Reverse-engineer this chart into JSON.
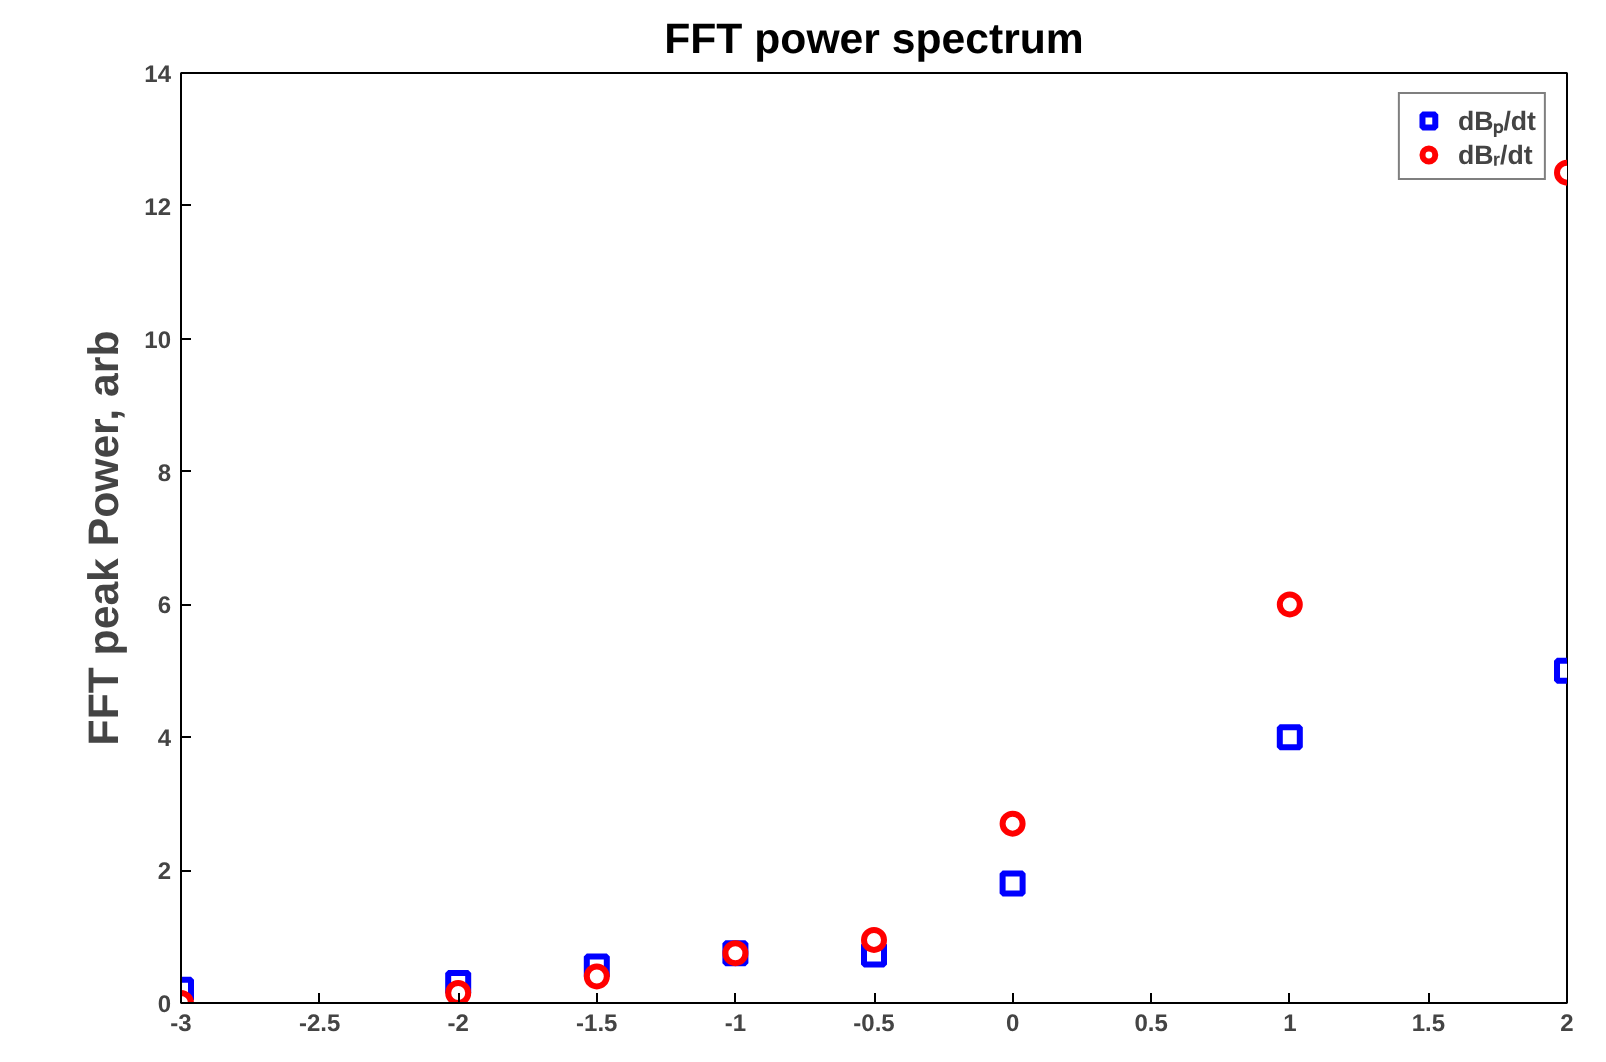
{
  "chart_data": {
    "type": "scatter",
    "title": "FFT power spectrum",
    "ylabel": "FFT peak Power, arb",
    "x": [
      -3,
      -2,
      -1.5,
      -1,
      -0.5,
      0,
      1,
      2
    ],
    "series": [
      {
        "name": "dBₚ/dt",
        "color": "#0000ff",
        "marker": "square",
        "values": [
          0.2,
          0.3,
          0.55,
          0.75,
          0.73,
          1.8,
          4,
          5
        ]
      },
      {
        "name": "dBᵣ/dt",
        "color": "#ff0000",
        "marker": "circle",
        "values": [
          0,
          0.15,
          0.4,
          0.75,
          0.95,
          2.7,
          6,
          12.5
        ]
      }
    ],
    "xlim": [
      -3,
      2
    ],
    "xticks": [
      -3,
      -2.5,
      -2,
      -1.5,
      -1,
      -0.5,
      0,
      0.5,
      1,
      1.5,
      2
    ],
    "ylim": [
      0,
      14
    ],
    "yticks": [
      0,
      2,
      4,
      6,
      8,
      10,
      12,
      14
    ],
    "grid": false,
    "legend": "top right"
  }
}
